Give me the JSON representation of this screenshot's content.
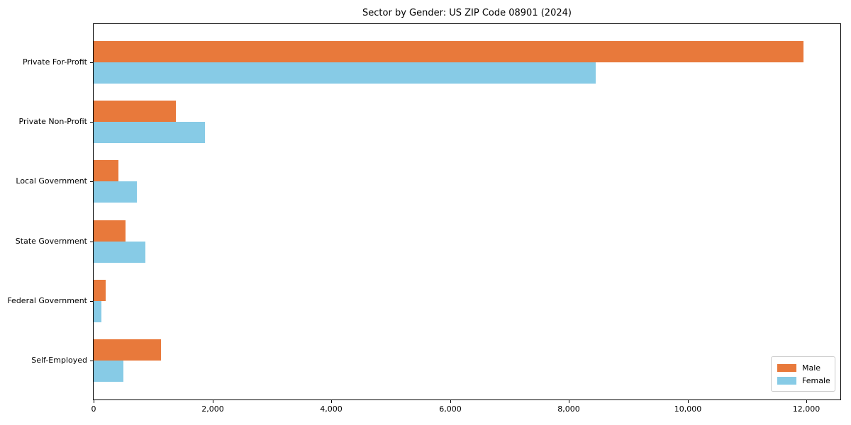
{
  "chart_data": {
    "type": "bar",
    "orientation": "horizontal",
    "title": "Sector by Gender: US ZIP Code 08901 (2024)",
    "categories": [
      "Private For-Profit",
      "Private Non-Profit",
      "Local Government",
      "State Government",
      "Federal Government",
      "Self-Employed"
    ],
    "series": [
      {
        "name": "Male",
        "color": "#e8793b",
        "values": [
          11950,
          1390,
          420,
          540,
          200,
          1140
        ]
      },
      {
        "name": "Female",
        "color": "#87cbe6",
        "values": [
          8450,
          1870,
          730,
          870,
          130,
          500
        ]
      }
    ],
    "xlabel": "",
    "ylabel": "",
    "xlim": [
      0,
      12570
    ],
    "x_tick_values": [
      0,
      2000,
      4000,
      6000,
      8000,
      10000,
      12000
    ],
    "x_tick_labels": [
      "0",
      "2,000",
      "4,000",
      "6,000",
      "8,000",
      "10,000",
      "12,000"
    ],
    "grid": false,
    "legend": {
      "position": "lower right",
      "entries": [
        "Male",
        "Female"
      ]
    }
  }
}
